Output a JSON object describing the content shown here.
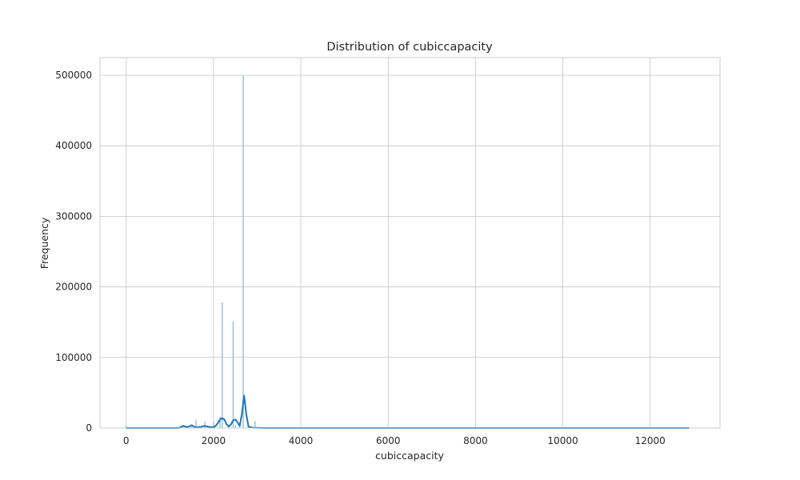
{
  "chart_data": {
    "type": "histogram",
    "title": "Distribution of cubiccapacity",
    "xlabel": "cubiccapacity",
    "ylabel": "Frequency",
    "xlim": [
      -600,
      13600
    ],
    "ylim": [
      0,
      525000
    ],
    "x_ticks": [
      0,
      2000,
      4000,
      6000,
      8000,
      10000,
      12000
    ],
    "y_ticks": [
      0,
      100000,
      200000,
      300000,
      400000,
      500000
    ],
    "grid": true,
    "legend": "none",
    "colors": {
      "bars": "#8fb8d9",
      "kde": "#1f77b4",
      "grid": "#cccccc",
      "text": "#262626"
    },
    "bins": [
      {
        "x": 0,
        "count": 3000
      },
      {
        "x": 1300,
        "count": 2500
      },
      {
        "x": 1400,
        "count": 2000
      },
      {
        "x": 1500,
        "count": 4000
      },
      {
        "x": 1600,
        "count": 12000
      },
      {
        "x": 1800,
        "count": 9000
      },
      {
        "x": 1900,
        "count": 3000
      },
      {
        "x": 2000,
        "count": 8000
      },
      {
        "x": 2150,
        "count": 16000
      },
      {
        "x": 2200,
        "count": 178000
      },
      {
        "x": 2350,
        "count": 5000
      },
      {
        "x": 2450,
        "count": 151000
      },
      {
        "x": 2500,
        "count": 4000
      },
      {
        "x": 2600,
        "count": 6000
      },
      {
        "x": 2680,
        "count": 500000
      },
      {
        "x": 2800,
        "count": 3000
      },
      {
        "x": 2950,
        "count": 10000
      },
      {
        "x": 12900,
        "count": 500
      }
    ],
    "kde": {
      "x": [
        0,
        1200,
        1300,
        1400,
        1450,
        1500,
        1550,
        1600,
        1700,
        1800,
        1900,
        2000,
        2050,
        2100,
        2150,
        2200,
        2250,
        2300,
        2350,
        2400,
        2450,
        2500,
        2550,
        2600,
        2650,
        2700,
        2750,
        2800,
        2900,
        3000,
        3200,
        12900
      ],
      "y": [
        0,
        0,
        3000,
        1200,
        2500,
        4000,
        2000,
        800,
        1500,
        3000,
        1500,
        1000,
        3000,
        7000,
        12000,
        14000,
        12000,
        5000,
        2000,
        5000,
        11000,
        12000,
        8000,
        3000,
        20000,
        46000,
        20000,
        2000,
        500,
        200,
        0,
        0
      ]
    }
  }
}
